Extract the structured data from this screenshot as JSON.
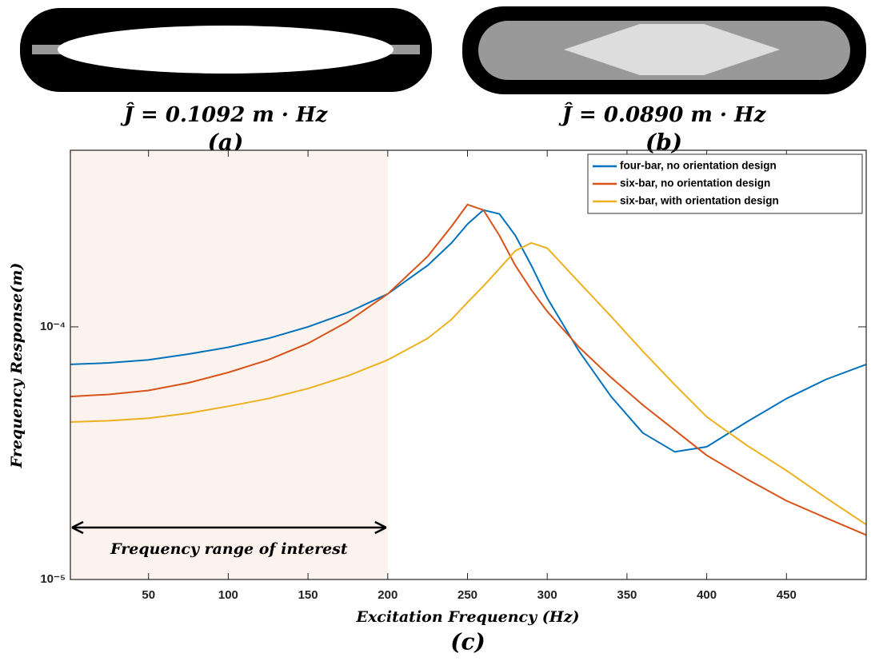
{
  "panels": {
    "a": {
      "caption": "Ĵ = 0.1092 m · Hz",
      "label": "(a)"
    },
    "b": {
      "caption": "Ĵ = 0.0890 m · Hz",
      "label": "(b)"
    },
    "c": {
      "label": "(c)"
    }
  },
  "chart_data": {
    "type": "line",
    "x_label": "Excitation Frequency (Hz)",
    "y_label": "Frequency Response(m)",
    "annotation": "Frequency range of interest",
    "highlight": [
      1,
      200
    ],
    "x": [
      1,
      25,
      50,
      75,
      100,
      125,
      150,
      175,
      200,
      225,
      240,
      250,
      260,
      270,
      280,
      290,
      300,
      320,
      340,
      360,
      380,
      400,
      425,
      450,
      475,
      500
    ],
    "series": [
      {
        "name": "four-bar, no orientation design",
        "color": "#0072bd",
        "values": [
          7.1e-05,
          7.2e-05,
          7.4e-05,
          7.8e-05,
          8.3e-05,
          9e-05,
          0.0001,
          0.000114,
          0.000135,
          0.000175,
          0.000215,
          0.000255,
          0.00029,
          0.00028,
          0.00023,
          0.000175,
          0.00013,
          8e-05,
          5.3e-05,
          3.8e-05,
          3.2e-05,
          3.35e-05,
          4.2e-05,
          5.2e-05,
          6.2e-05,
          7.1e-05
        ]
      },
      {
        "name": "six-bar, no orientation design",
        "color": "#d95319",
        "values": [
          5.3e-05,
          5.4e-05,
          5.6e-05,
          6e-05,
          6.6e-05,
          7.4e-05,
          8.6e-05,
          0.000105,
          0.000135,
          0.00019,
          0.00025,
          0.000305,
          0.00029,
          0.00023,
          0.000175,
          0.00014,
          0.000115,
          8.3e-05,
          6.3e-05,
          4.9e-05,
          3.9e-05,
          3.1e-05,
          2.5e-05,
          2.05e-05,
          1.75e-05,
          1.5e-05
        ]
      },
      {
        "name": "six-bar, with orientation design",
        "color": "#edb120",
        "values": [
          4.2e-05,
          4.25e-05,
          4.35e-05,
          4.55e-05,
          4.85e-05,
          5.2e-05,
          5.7e-05,
          6.4e-05,
          7.4e-05,
          9e-05,
          0.000107,
          0.000125,
          0.000145,
          0.00017,
          0.0002,
          0.000215,
          0.000205,
          0.00015,
          0.00011,
          8e-05,
          5.9e-05,
          4.4e-05,
          3.4e-05,
          2.7e-05,
          2.1e-05,
          1.65e-05
        ]
      }
    ],
    "xlim": [
      1,
      500
    ],
    "xticks": [
      50,
      100,
      150,
      200,
      250,
      300,
      350,
      400,
      450
    ],
    "ylim": [
      1e-05,
      0.0005
    ],
    "log_y": true,
    "yticks": [
      {
        "value": 1e-05,
        "label": "10⁻⁵"
      },
      {
        "value": 0.0001,
        "label": "10⁻⁴"
      }
    ],
    "legend": "upper right"
  }
}
